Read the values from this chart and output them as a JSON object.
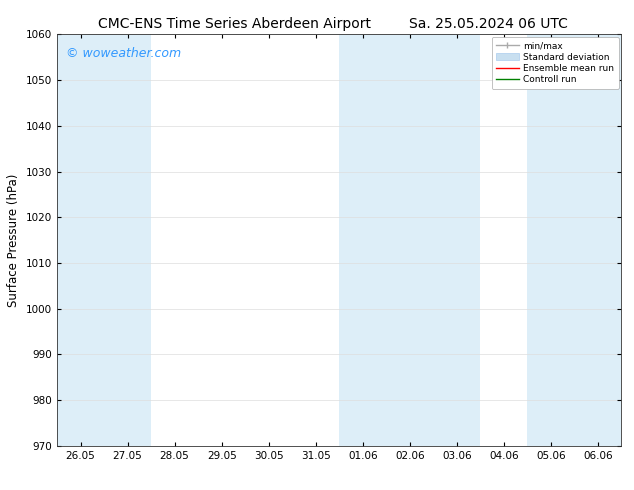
{
  "title_left": "CMC-ENS Time Series Aberdeen Airport",
  "title_right": "Sa. 25.05.2024 06 UTC",
  "ylabel": "Surface Pressure (hPa)",
  "ylim": [
    970,
    1060
  ],
  "yticks": [
    970,
    980,
    990,
    1000,
    1010,
    1020,
    1030,
    1040,
    1050,
    1060
  ],
  "xtick_labels": [
    "26.05",
    "27.05",
    "28.05",
    "29.05",
    "30.05",
    "31.05",
    "01.06",
    "02.06",
    "03.06",
    "04.06",
    "05.06",
    "06.06"
  ],
  "n_xticks": 12,
  "watermark": "© woweather.com",
  "watermark_color": "#3399ff",
  "bg_color": "#ffffff",
  "shaded_band_color": "#ddeef8",
  "shaded_ranges": [
    [
      -0.5,
      1.5
    ],
    [
      5.5,
      8.5
    ],
    [
      9.5,
      11.5
    ]
  ],
  "legend_items": [
    {
      "label": "min/max",
      "color": "#aaaaaa",
      "lw": 1.0
    },
    {
      "label": "Standard deviation",
      "color": "#c8dff0",
      "lw": 6
    },
    {
      "label": "Ensemble mean run",
      "color": "#ff0000",
      "lw": 1.0
    },
    {
      "label": "Controll run",
      "color": "#008000",
      "lw": 1.0
    }
  ],
  "title_fontsize": 10,
  "tick_fontsize": 7.5,
  "ylabel_fontsize": 8.5,
  "watermark_fontsize": 9
}
